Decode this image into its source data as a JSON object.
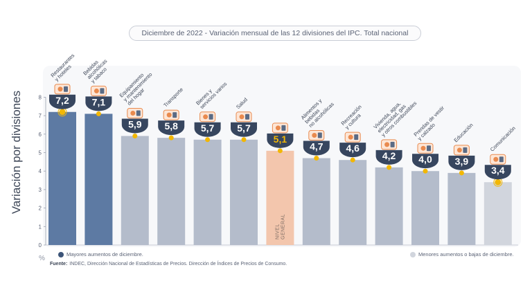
{
  "title_date": "Diciembre de 2022",
  "title_text": "- Variación mensual de las 12 divisiones del IPC. Total nacional",
  "y_axis_label": "Variación por divisiones",
  "unit": "%",
  "legend": {
    "high": "Mayores aumentos de diciembre.",
    "low": "Menores aumentos o bajas de diciembre."
  },
  "source_label": "Fuente:",
  "source_text": "INDEC, Dirección Nacional de Estadísticas de Precios. Dirección de Índices de Precios de Consumo.",
  "colors": {
    "high": "#5d7aa3",
    "low": "#b4bccb",
    "lowest": "#d1d5dd",
    "general": "#f3c6ad",
    "dot": "#f2b705",
    "badge": "#37465f",
    "badge_general_text": "#f2b705"
  },
  "chart_data": {
    "type": "bar",
    "categories": [
      "Restaurantes y hoteles",
      "Bebidas alcohólicas y tabaco",
      "Equipamiento y mantenimiento del hogar",
      "Transporte",
      "Bienes y servicios varios",
      "Salud",
      "Nivel general",
      "Alimentos y bebidas no alcohólicas",
      "Recreación y cultura",
      "Vivienda, agua, electricidad, gas y otros combustibles",
      "Prendas de vestir y calzado",
      "Educación",
      "Comunicación"
    ],
    "label_lines": [
      [
        "Restaurantes",
        "y hoteles"
      ],
      [
        "Bebidas",
        "alcohólicas",
        "y tabaco"
      ],
      [
        "Equipamiento",
        "y mantenimiento",
        "del hogar"
      ],
      [
        "Transporte"
      ],
      [
        "Bienes y",
        "servicios varios"
      ],
      [
        "Salud"
      ],
      [],
      [
        "Alimentos y",
        "bebidas",
        "no alcohólicas"
      ],
      [
        "Recreación",
        "y cultura"
      ],
      [
        "Vivienda, agua,",
        "electricidad, gas",
        "y otros combustibles"
      ],
      [
        "Prendas de vestir",
        "y calzado"
      ],
      [
        "Educación"
      ],
      [
        "Comunicación"
      ]
    ],
    "values": [
      7.2,
      7.1,
      5.9,
      5.8,
      5.7,
      5.7,
      5.1,
      4.7,
      4.6,
      4.2,
      4.0,
      3.9,
      3.4
    ],
    "value_labels": [
      "7,2",
      "7,1",
      "5,9",
      "5,8",
      "5,7",
      "5,7",
      "5,1",
      "4,7",
      "4,6",
      "4,2",
      "4,0",
      "3,9",
      "3,4"
    ],
    "groups": [
      "high",
      "high",
      "low",
      "low",
      "low",
      "low",
      "general",
      "low",
      "low",
      "low",
      "low",
      "low",
      "lowest"
    ],
    "icons": [
      "restaurant-icon",
      "wine-icon",
      "washing-machine-icon",
      "car-icon",
      "comb-icon",
      "health-cross-icon",
      "basket-icon",
      "grocery-bag-icon",
      "umbrella-icon",
      "lightbulb-icon",
      "tshirt-icon",
      "book-icon",
      "smartphone-icon"
    ],
    "general_bar_text": [
      "NIVEL",
      "GENERAL"
    ],
    "ylim": [
      0,
      8
    ],
    "yticks": [
      0,
      1,
      2,
      3,
      4,
      5,
      6,
      7,
      8
    ],
    "grid": false,
    "legend_position": "bottom"
  }
}
